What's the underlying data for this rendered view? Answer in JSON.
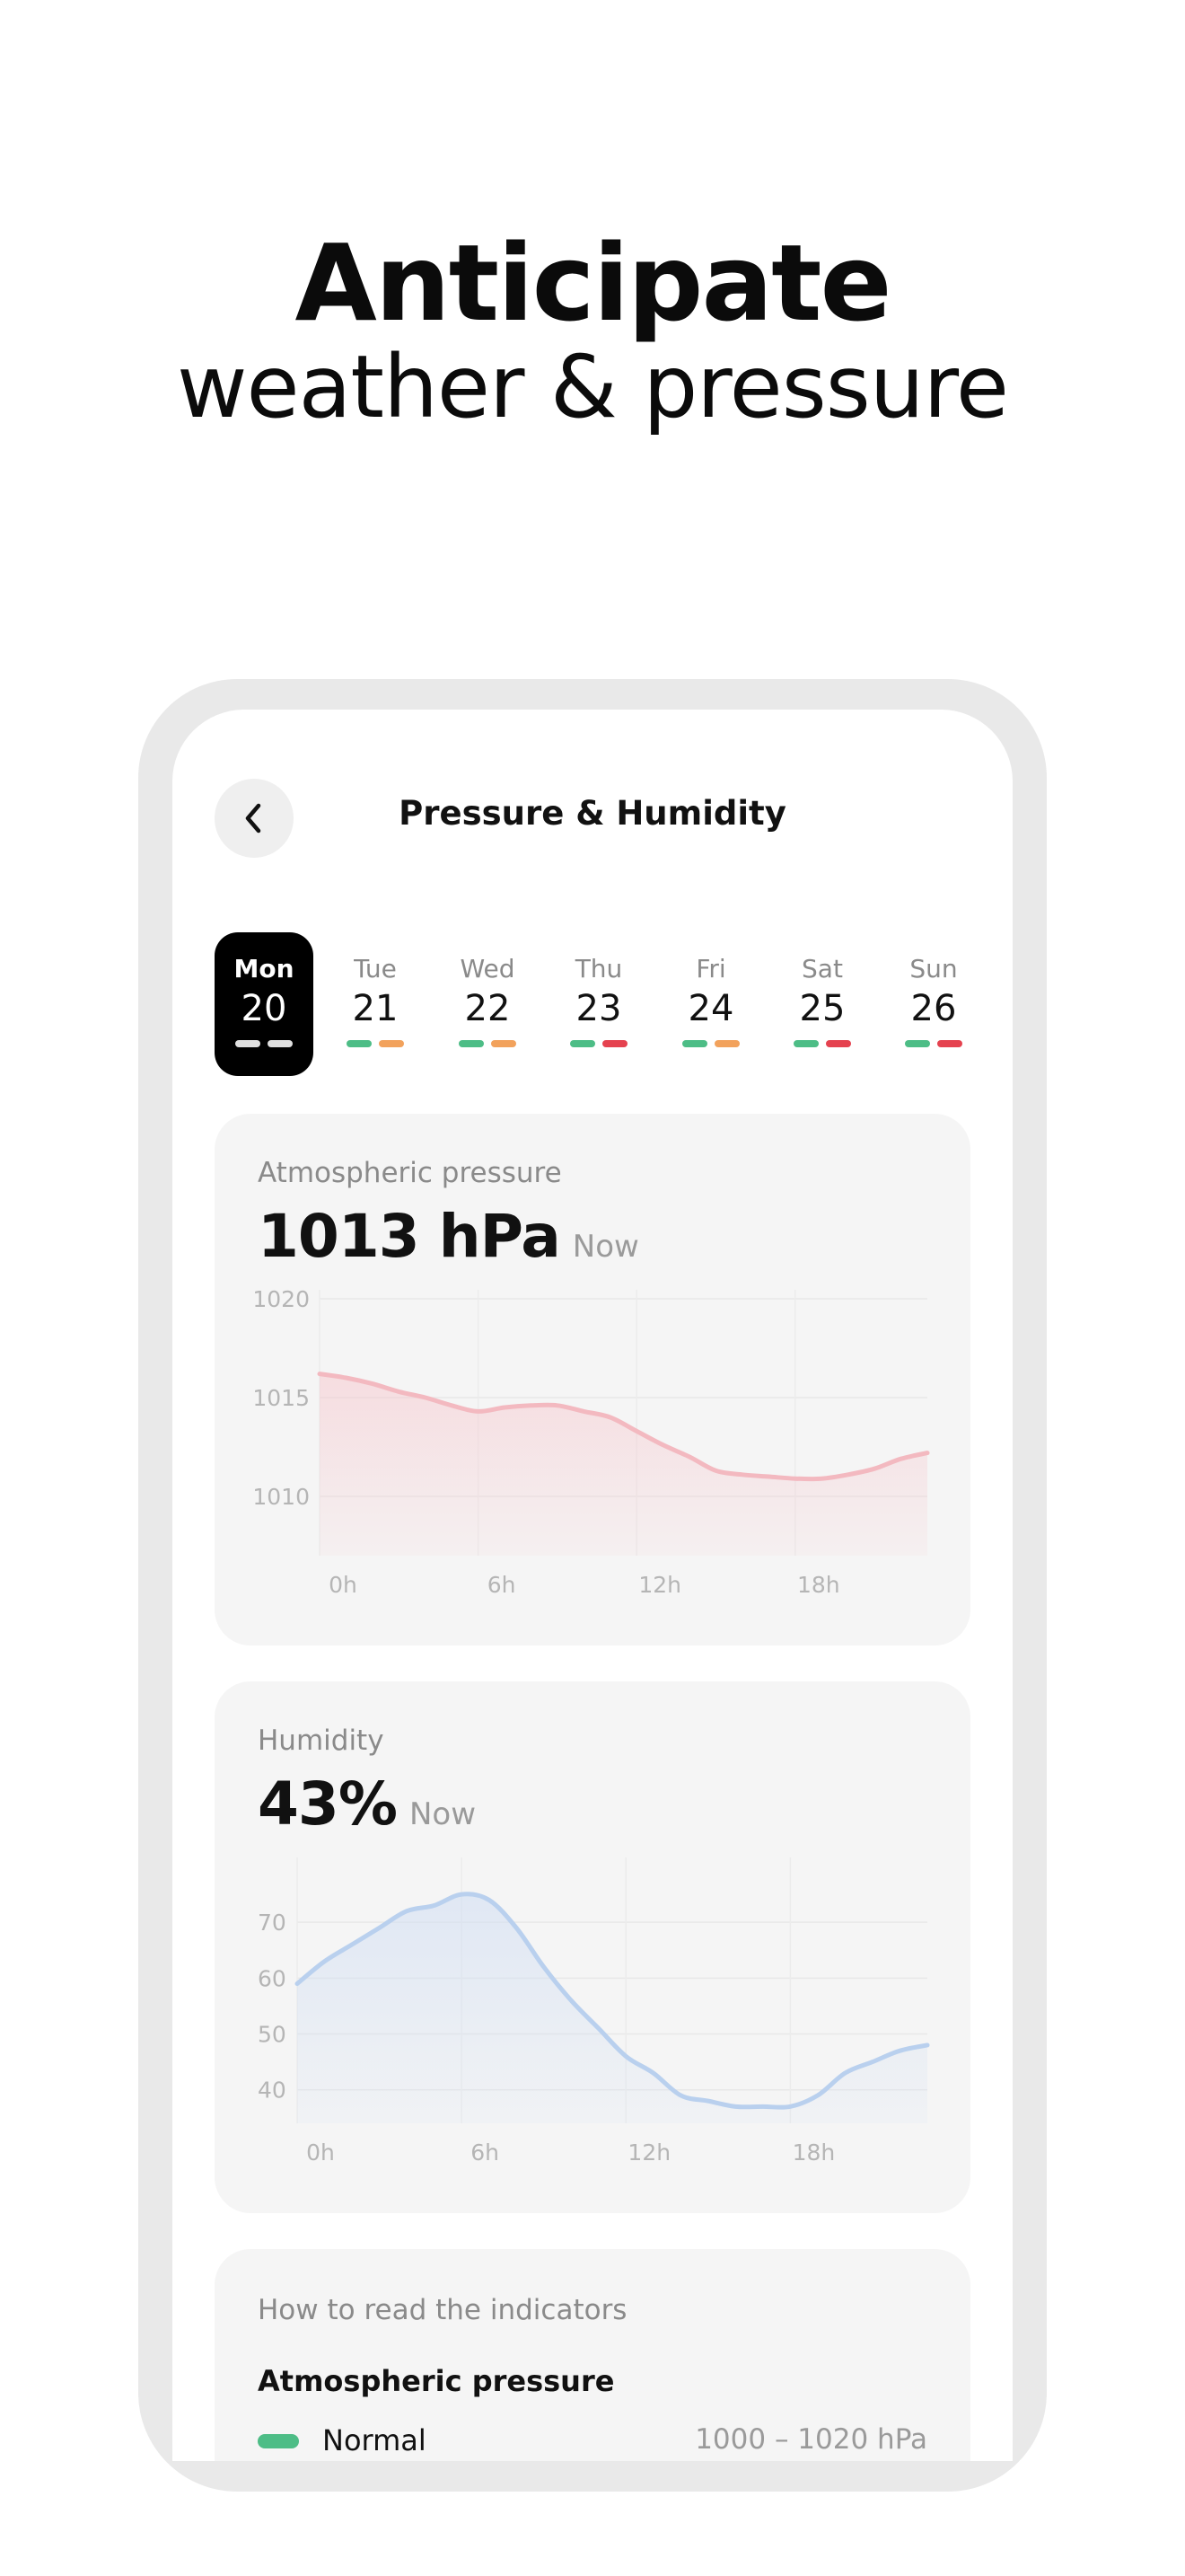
{
  "hero": {
    "title": "Anticipate",
    "subtitle": "weather & pressure"
  },
  "header": {
    "title": "Pressure & Humidity",
    "back_icon": "chevron-left-icon"
  },
  "colors": {
    "green": "#4dbd86",
    "orange": "#f2a25c",
    "red": "#e5424f",
    "pressure_line": "#f3b9c0",
    "humidity_line": "#b9d0ee"
  },
  "days": [
    {
      "name": "Mon",
      "num": "20",
      "selected": true,
      "indicators": [
        "#e0e0e0",
        "#e0e0e0"
      ]
    },
    {
      "name": "Tue",
      "num": "21",
      "selected": false,
      "indicators": [
        "#4dbd86",
        "#f2a25c"
      ]
    },
    {
      "name": "Wed",
      "num": "22",
      "selected": false,
      "indicators": [
        "#4dbd86",
        "#f2a25c"
      ]
    },
    {
      "name": "Thu",
      "num": "23",
      "selected": false,
      "indicators": [
        "#4dbd86",
        "#e5424f"
      ]
    },
    {
      "name": "Fri",
      "num": "24",
      "selected": false,
      "indicators": [
        "#4dbd86",
        "#f2a25c"
      ]
    },
    {
      "name": "Sat",
      "num": "25",
      "selected": false,
      "indicators": [
        "#4dbd86",
        "#e5424f"
      ]
    },
    {
      "name": "Sun",
      "num": "26",
      "selected": false,
      "indicators": [
        "#4dbd86",
        "#e5424f"
      ]
    }
  ],
  "pressure": {
    "label": "Atmospheric pressure",
    "value": "1013 hPa",
    "now": "Now"
  },
  "humidity": {
    "label": "Humidity",
    "value": "43%",
    "now": "Now"
  },
  "legend": {
    "title": "How to read the indicators",
    "section": "Atmospheric pressure",
    "rows": [
      {
        "name": "Normal",
        "range": "1000 – 1020 hPa",
        "color": "#4dbd86"
      }
    ]
  },
  "chart_data": [
    {
      "type": "area",
      "title": "Atmospheric pressure",
      "x_ticks": [
        "0h",
        "6h",
        "12h",
        "18h"
      ],
      "y_ticks": [
        "1010",
        "1015",
        "1020"
      ],
      "ylim": [
        1007,
        1020
      ],
      "grid": true,
      "x": [
        0,
        1,
        2,
        3,
        4,
        5,
        6,
        7,
        8,
        9,
        10,
        11,
        12,
        13,
        14,
        15,
        16,
        17,
        18,
        19,
        20,
        21,
        22,
        23
      ],
      "series": [
        {
          "values": [
            1016.2,
            1016.0,
            1015.7,
            1015.3,
            1015.0,
            1014.6,
            1014.3,
            1014.5,
            1014.6,
            1014.6,
            1014.3,
            1014.0,
            1013.3,
            1012.6,
            1012.0,
            1011.3,
            1011.1,
            1011.0,
            1010.9,
            1010.9,
            1011.1,
            1011.4,
            1011.9,
            1012.2
          ]
        }
      ]
    },
    {
      "type": "area",
      "title": "Humidity",
      "x_ticks": [
        "0h",
        "6h",
        "12h",
        "18h"
      ],
      "y_ticks": [
        "40",
        "50",
        "60",
        "70"
      ],
      "ylim": [
        34,
        80
      ],
      "grid": true,
      "x": [
        0,
        1,
        2,
        3,
        4,
        5,
        6,
        7,
        8,
        9,
        10,
        11,
        12,
        13,
        14,
        15,
        16,
        17,
        18,
        19,
        20,
        21,
        22,
        23
      ],
      "series": [
        {
          "values": [
            59,
            63,
            66,
            69,
            72,
            73,
            75,
            74,
            69,
            62,
            56,
            51,
            46,
            43,
            39,
            38,
            37,
            37,
            37,
            39,
            43,
            45,
            47,
            48
          ]
        }
      ]
    }
  ]
}
